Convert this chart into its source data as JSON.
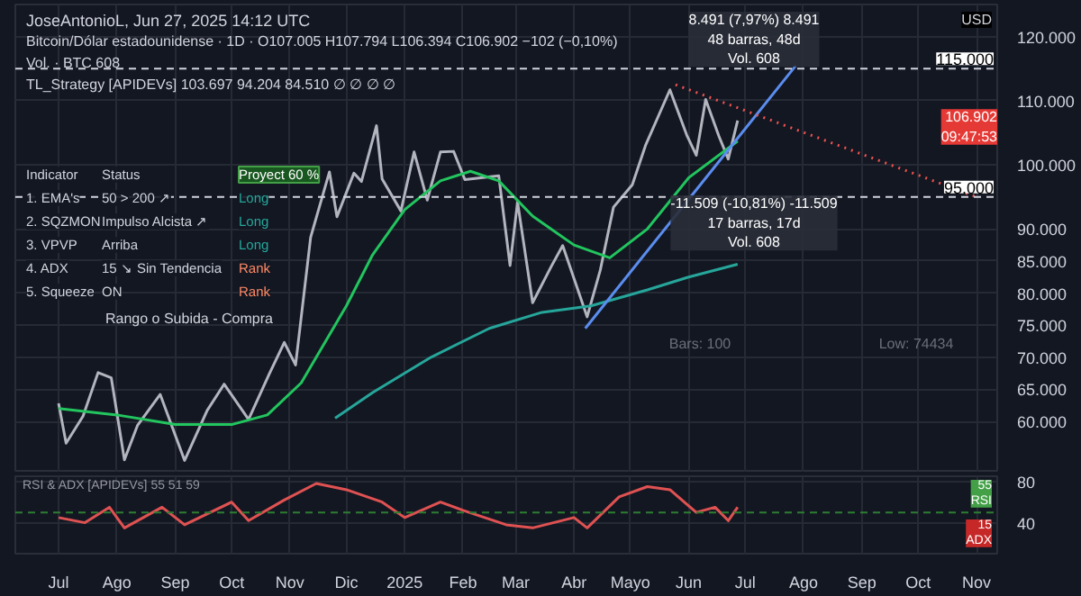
{
  "chart_data": [
    {
      "type": "line",
      "ylabel": null,
      "xlim": [
        "2024-06-08",
        "2025-11-12"
      ],
      "ylim": [
        52000,
        125000
      ],
      "xticks": [
        {
          "value": "2024-07-01",
          "label": null
        },
        {
          "value": "2024-08-01",
          "label": null
        },
        {
          "value": "2024-09-01",
          "label": null
        },
        {
          "value": "2024-10-01",
          "label": null
        },
        {
          "value": "2024-11-01",
          "label": null
        },
        {
          "value": "2024-12-01",
          "label": null
        },
        {
          "value": "2025-01-01",
          "label": null
        },
        {
          "value": "2025-02-01",
          "label": null
        },
        {
          "value": "2025-03-01",
          "label": null
        },
        {
          "value": "2025-04-01",
          "label": null
        },
        {
          "value": "2025-05-01",
          "label": null
        },
        {
          "value": "2025-06-01",
          "label": null
        },
        {
          "value": "2025-07-01",
          "label": null
        },
        {
          "value": "2025-08-01",
          "label": null
        },
        {
          "value": "2025-09-01",
          "label": null
        },
        {
          "value": "2025-10-01",
          "label": null
        },
        {
          "value": "2025-11-01",
          "label": null
        }
      ],
      "yticks": [
        {
          "value": 60000,
          "label": "60.000"
        },
        {
          "value": 65000,
          "label": "65.000"
        },
        {
          "value": 70000,
          "label": "70.000"
        },
        {
          "value": 75000,
          "label": "75.000"
        },
        {
          "value": 80000,
          "label": "80.000"
        },
        {
          "value": 85000,
          "label": "85.000"
        },
        {
          "value": 90000,
          "label": "90.000"
        },
        {
          "value": 100000,
          "label": "100.000"
        },
        {
          "value": 110000,
          "label": "110.000"
        },
        {
          "value": 120000,
          "label": "120.000"
        }
      ],
      "tick_labels": "y",
      "grid": true,
      "marker": "none",
      "series": [
        {
          "color": "#b2b5be",
          "line_style": "solid",
          "x": [
            "2024-07-01",
            "2024-07-05",
            "2024-07-14",
            "2024-07-22",
            "2024-07-29",
            "2024-08-05",
            "2024-08-12",
            "2024-08-24",
            "2024-09-06",
            "2024-09-18",
            "2024-09-27",
            "2024-10-10",
            "2024-10-21",
            "2024-10-29",
            "2024-11-04",
            "2024-11-12",
            "2024-11-22",
            "2024-11-26",
            "2024-12-05",
            "2024-12-09",
            "2024-12-17",
            "2024-12-20",
            "2024-12-30",
            "2025-01-06",
            "2025-01-13",
            "2025-01-20",
            "2025-01-27",
            "2025-02-02",
            "2025-02-20",
            "2025-02-26",
            "2025-03-02",
            "2025-03-10",
            "2025-03-20",
            "2025-03-26",
            "2025-04-08",
            "2025-04-15",
            "2025-04-22",
            "2025-05-02",
            "2025-05-09",
            "2025-05-22",
            "2025-05-31",
            "2025-06-05",
            "2025-06-10",
            "2025-06-17",
            "2025-06-22",
            "2025-06-27"
          ],
          "values": [
            62800,
            56600,
            60800,
            67600,
            66800,
            54000,
            59400,
            64200,
            53900,
            61700,
            65800,
            60300,
            67400,
            72300,
            68800,
            88700,
            98900,
            91900,
            98700,
            97400,
            106100,
            97800,
            92800,
            102000,
            94500,
            102000,
            102100,
            97700,
            98300,
            84300,
            94200,
            78500,
            84200,
            87400,
            76300,
            83600,
            93400,
            96900,
            103000,
            111700,
            104600,
            101500,
            110200,
            104500,
            100900,
            106900
          ]
        },
        {
          "color": "#22c55e",
          "line_style": "solid",
          "x": [
            "2024-07-01",
            "2024-08-01",
            "2024-09-01",
            "2024-10-01",
            "2024-10-20",
            "2024-11-07",
            "2024-12-01",
            "2024-12-15",
            "2025-01-01",
            "2025-01-20",
            "2025-02-05",
            "2025-02-20",
            "2025-03-10",
            "2025-04-01",
            "2025-04-20",
            "2025-05-10",
            "2025-06-01",
            "2025-06-27"
          ],
          "values": [
            62000,
            61000,
            59500,
            59500,
            61000,
            66000,
            78000,
            86000,
            93000,
            97500,
            99000,
            97500,
            92000,
            87500,
            85500,
            90000,
            98000,
            103700
          ]
        },
        {
          "color": "#26a69a",
          "line_style": "solid",
          "x": [
            "2024-11-25",
            "2024-12-15",
            "2025-01-15",
            "2025-02-15",
            "2025-03-15",
            "2025-04-10",
            "2025-05-10",
            "2025-06-01",
            "2025-06-27"
          ],
          "values": [
            60500,
            64500,
            70000,
            74500,
            77000,
            78000,
            80500,
            82500,
            84500
          ]
        },
        {
          "color": "#5b8def",
          "line_style": "solid",
          "x": [
            "2025-04-07",
            "2025-07-28"
          ],
          "values": [
            74500,
            115500
          ]
        },
        {
          "color": "#ef5350",
          "line_style": "dotted",
          "x": [
            "2025-05-25",
            "2025-11-01"
          ],
          "values": [
            112500,
            95000
          ]
        }
      ],
      "ref_lines": [
        {
          "axis": "y",
          "value": 115000,
          "label": "115.000",
          "color": "#d1d4dc",
          "line_style": "dashed"
        },
        {
          "axis": "y",
          "value": 95000,
          "label": "95.000",
          "color": "#d1d4dc",
          "line_style": "dashed"
        }
      ],
      "annotations": [
        "JoseAntonioL, Jun 27, 2025 14:12 UTC",
        "Bitcoin/Dólar estadounidense · 1D · O107.005 H107.794 L106.394 C106.902 −102 (−0,10%)",
        "Vol. · BTC 608",
        "TL_Strategy [APIDEVs] 103.697 94.204 84.510 ∅ ∅ ∅ ∅",
        "Indicator",
        "Status",
        "Proyect 60 %",
        "1. EMA's",
        "50 > 200 ↗",
        "Long",
        "2. SQZMON",
        "Impulso Alcista ↗",
        "Long",
        "3. VPVP",
        "Arriba",
        "Long",
        "4. ADX",
        "15 ↘ Sin Tendencia",
        "Rank",
        "5. Squeeze",
        "ON",
        "Rank",
        "Rango o Subida - Compra",
        "USD",
        "106.902\n09:47:53",
        "8.491 (7,97%) 8.491\n48 barras, 48d\nVol. 608",
        "-11.509 (-10,81%) -11.509\n17 barras, 17d\nVol. 608",
        "Bars: 100",
        "Low: 74434"
      ]
    },
    {
      "type": "line",
      "xlim": [
        "2024-06-08",
        "2025-11-12"
      ],
      "ylim": [
        10,
        85
      ],
      "xticks": [
        {
          "value": "2024-07-01",
          "label": "Jul"
        },
        {
          "value": "2024-08-01",
          "label": "Ago"
        },
        {
          "value": "2024-09-01",
          "label": "Sep"
        },
        {
          "value": "2024-10-01",
          "label": "Oct"
        },
        {
          "value": "2024-11-01",
          "label": "Nov"
        },
        {
          "value": "2024-12-01",
          "label": "Dic"
        },
        {
          "value": "2025-01-01",
          "label": "2025"
        },
        {
          "value": "2025-02-01",
          "label": "Feb"
        },
        {
          "value": "2025-03-01",
          "label": "Mar"
        },
        {
          "value": "2025-04-01",
          "label": "Abr"
        },
        {
          "value": "2025-05-01",
          "label": "Mayo"
        },
        {
          "value": "2025-06-01",
          "label": "Jun"
        },
        {
          "value": "2025-07-01",
          "label": "Jul"
        },
        {
          "value": "2025-08-01",
          "label": "Ago"
        },
        {
          "value": "2025-09-01",
          "label": "Sep"
        },
        {
          "value": "2025-10-01",
          "label": "Oct"
        },
        {
          "value": "2025-11-01",
          "label": "Nov"
        }
      ],
      "yticks": [
        40,
        80
      ],
      "grid": true,
      "marker": "none",
      "series": [
        {
          "color": "#e05252",
          "line_style": "solid",
          "x": [
            "2024-07-01",
            "2024-07-15",
            "2024-07-28",
            "2024-08-05",
            "2024-08-25",
            "2024-09-06",
            "2024-10-01",
            "2024-10-10",
            "2024-10-29",
            "2024-11-15",
            "2024-12-01",
            "2024-12-20",
            "2025-01-01",
            "2025-01-20",
            "2025-02-01",
            "2025-02-24",
            "2025-03-10",
            "2025-04-01",
            "2025-04-08",
            "2025-04-25",
            "2025-05-10",
            "2025-05-22",
            "2025-06-05",
            "2025-06-15",
            "2025-06-22",
            "2025-06-27"
          ],
          "values": [
            45,
            40,
            55,
            35,
            55,
            38,
            60,
            42,
            62,
            78,
            72,
            60,
            45,
            60,
            52,
            38,
            35,
            45,
            35,
            65,
            75,
            72,
            50,
            55,
            42,
            55
          ]
        }
      ],
      "ref_lines": [
        {
          "axis": "y",
          "value": 50,
          "label": null,
          "color": "#2e7d32",
          "line_style": "dashed"
        }
      ],
      "annotations": [
        "RSI & ADX [APIDEVs] 55 51 59",
        "55\nRSI",
        "15\nADX"
      ]
    }
  ]
}
